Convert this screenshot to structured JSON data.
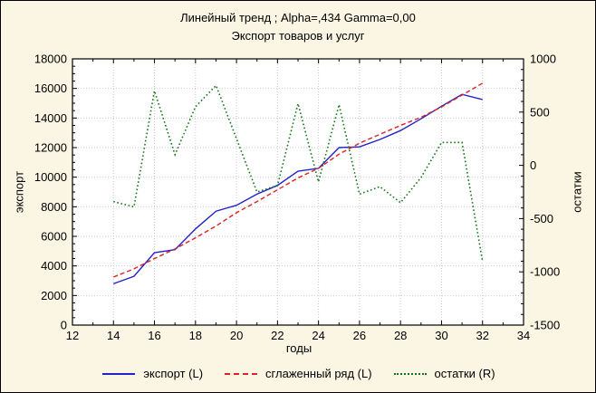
{
  "window": {
    "background_color": "#FBF6E4",
    "plot_background_color": "#FFFFFF",
    "frame_color": "#000000",
    "grid_color": "#C9C9C9"
  },
  "chart_data": {
    "type": "line",
    "title": "Линейный тренд ; Alpha=,434 Gamma=0,00",
    "subtitle": "Экспорт товаров и услуг",
    "xlabel": "годы",
    "ylabel_left": "экспорт",
    "ylabel_right": "остатки",
    "xlim": [
      12,
      34
    ],
    "x_major_ticks": [
      12,
      14,
      16,
      18,
      20,
      22,
      24,
      26,
      28,
      30,
      32,
      34
    ],
    "x_minor_step": 1,
    "ylim_left": [
      0,
      18000
    ],
    "y_left_major_ticks": [
      0,
      2000,
      4000,
      6000,
      8000,
      10000,
      12000,
      14000,
      16000,
      18000
    ],
    "y_left_minor_step": 500,
    "ylim_right": [
      -1500,
      1000
    ],
    "y_right_major_ticks": [
      -1500,
      -1000,
      -500,
      0,
      500,
      1000
    ],
    "y_right_minor_step": 100,
    "grid": "dotted",
    "legend_position": "bottom",
    "x": [
      14,
      15,
      16,
      17,
      18,
      19,
      20,
      21,
      22,
      23,
      24,
      25,
      26,
      27,
      28,
      29,
      30,
      31,
      32
    ],
    "series": [
      {
        "key": "export",
        "name": "экспорт (L)",
        "axis": "left",
        "style": "solid",
        "color": "#2222CC",
        "values": [
          2800,
          3300,
          4900,
          5100,
          6500,
          7700,
          8100,
          8850,
          9450,
          10400,
          10600,
          12000,
          12050,
          12550,
          13150,
          13950,
          14800,
          15600,
          15250
        ]
      },
      {
        "key": "smoothed",
        "name": "сглаженный ряд (L)",
        "axis": "left",
        "style": "dashed",
        "color": "#DD2222",
        "values": [
          3250,
          3800,
          4500,
          5150,
          5900,
          6700,
          7600,
          8350,
          9150,
          9950,
          10600,
          11550,
          12300,
          12900,
          13500,
          14050,
          14750,
          15550,
          16350
        ]
      },
      {
        "key": "residuals",
        "name": "остатки (R)",
        "axis": "right",
        "style": "dotted",
        "color": "#177517",
        "values": [
          -340,
          -390,
          700,
          100,
          550,
          750,
          250,
          -250,
          -190,
          580,
          -155,
          570,
          -270,
          -200,
          -350,
          -115,
          215,
          215,
          -900
        ]
      }
    ]
  }
}
